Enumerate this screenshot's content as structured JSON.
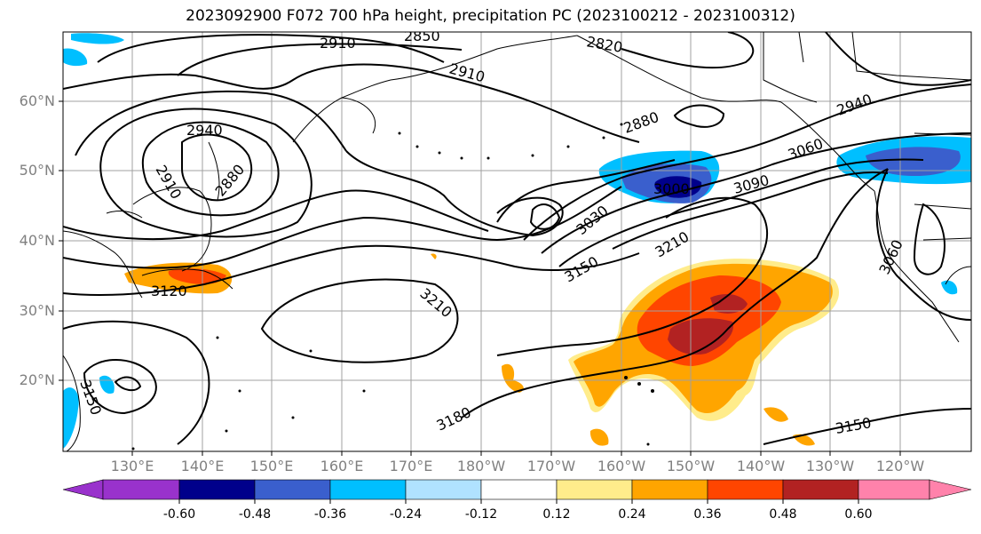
{
  "title": "2023092900 F072 700 hPa height, precipitation PC (2023100212 - 2023100312)",
  "lat_labels": [
    "60°N",
    "50°N",
    "40°N",
    "30°N",
    "20°N"
  ],
  "lon_labels": [
    "130°E",
    "140°E",
    "150°E",
    "160°E",
    "170°E",
    "180°W",
    "170°W",
    "160°W",
    "150°W",
    "140°W",
    "130°W",
    "120°W"
  ],
  "contour_labels": [
    "2910",
    "2850",
    "2820",
    "2910",
    "2940",
    "2910",
    "2880",
    "2880",
    "2940",
    "3000",
    "3060",
    "3090",
    "3030",
    "3150",
    "3210",
    "3120",
    "3210",
    "3180",
    "3150",
    "3150",
    "3060"
  ],
  "colorbar": {
    "ticks": [
      "-0.60",
      "-0.48",
      "-0.36",
      "-0.24",
      "-0.12",
      "0.12",
      "0.24",
      "0.36",
      "0.48",
      "0.60"
    ],
    "colors": [
      "#9932cc",
      "#00008b",
      "#3a5fcd",
      "#00bfff",
      "#b0e2ff",
      "#ffffff",
      "#ffec8b",
      "#ffa500",
      "#ff4500",
      "#b22222",
      "#ff82ab"
    ]
  }
}
